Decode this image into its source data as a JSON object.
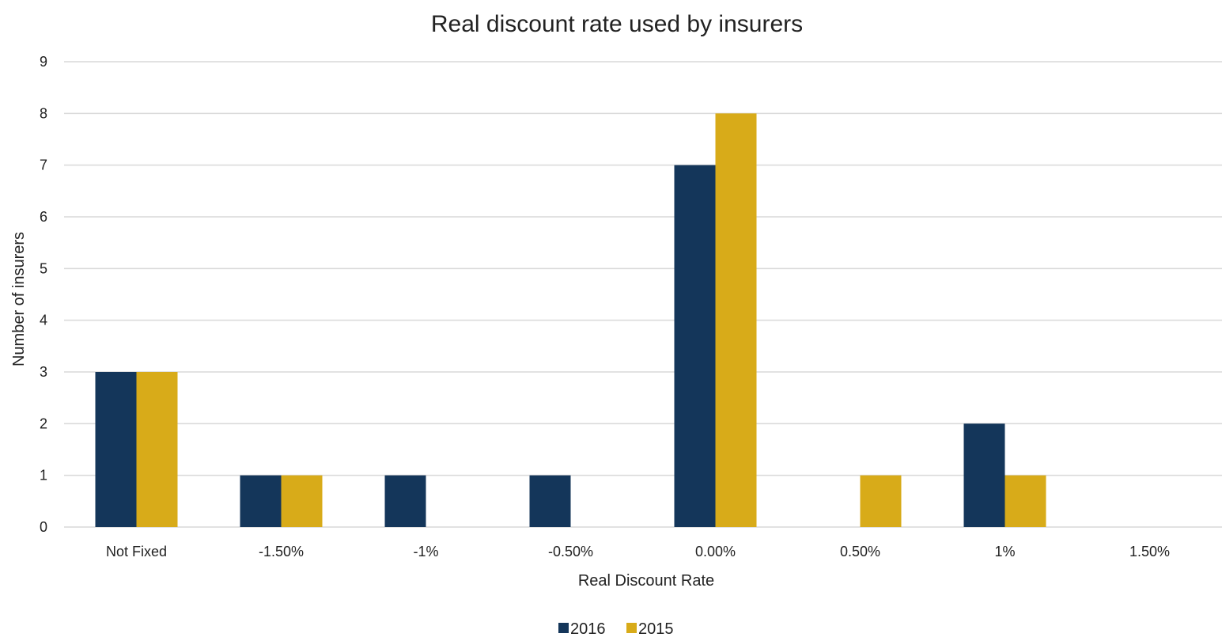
{
  "chart_data": {
    "type": "bar",
    "title": "Real discount rate used by insurers",
    "xlabel": "Real Discount Rate",
    "ylabel": "Number of insurers",
    "categories": [
      "Not Fixed",
      "-1.50%",
      "-1%",
      "-0.50%",
      "0.00%",
      "0.50%",
      "1%",
      "1.50%"
    ],
    "series": [
      {
        "name": "2016",
        "color": "#14365a",
        "values": [
          3,
          1,
          1,
          1,
          7,
          0,
          2,
          0
        ]
      },
      {
        "name": "2015",
        "color": "#d8ab19",
        "values": [
          3,
          1,
          0,
          0,
          8,
          1,
          1,
          0
        ]
      }
    ],
    "ylim": [
      0,
      9
    ],
    "yticks": [
      "0",
      "1",
      "2",
      "3",
      "4",
      "5",
      "6",
      "7",
      "8",
      "9"
    ],
    "grid": true,
    "gridColor": "#d9d9d9",
    "legend_position": "bottom"
  }
}
